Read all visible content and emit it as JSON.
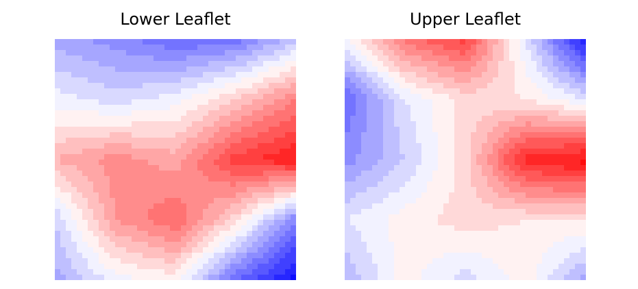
{
  "chart_data": [
    {
      "type": "heatmap",
      "title": "Lower Leaflet",
      "colormap": "bwr",
      "vmin": -1,
      "vmax": 1,
      "grid_size": 5,
      "values": [
        [
          -0.35,
          -0.45,
          -0.6,
          -0.55,
          -0.25
        ],
        [
          -0.05,
          -0.15,
          -0.05,
          0.2,
          0.5
        ],
        [
          0.3,
          0.45,
          0.35,
          0.75,
          0.9
        ],
        [
          -0.2,
          0.4,
          0.6,
          0.15,
          -0.5
        ],
        [
          -0.35,
          -0.05,
          0.05,
          -0.6,
          -0.95
        ]
      ],
      "axis": "off"
    },
    {
      "type": "heatmap",
      "title": "Upper Leaflet",
      "colormap": "bwr",
      "vmin": -1,
      "vmax": 1,
      "grid_size": 5,
      "values": [
        [
          -0.05,
          0.55,
          0.75,
          -0.1,
          -0.95
        ],
        [
          -0.6,
          -0.1,
          0.15,
          0.1,
          -0.1
        ],
        [
          -0.45,
          -0.2,
          0.15,
          0.85,
          0.95
        ],
        [
          -0.1,
          0.05,
          0.15,
          0.1,
          0.1
        ],
        [
          -0.3,
          0.05,
          -0.15,
          0.05,
          -0.35
        ]
      ],
      "axis": "off"
    }
  ]
}
